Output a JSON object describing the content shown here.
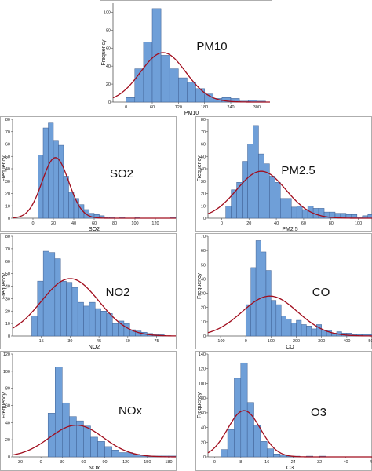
{
  "chart_data": [
    {
      "type": "bar",
      "annotation": "PM10",
      "xlabel": "PM10",
      "ylabel": "Frequency",
      "xlim": [
        -30,
        330
      ],
      "ylim": [
        0,
        110
      ],
      "xticks": [
        0,
        60,
        120,
        180,
        240,
        300
      ],
      "yticks": [
        0,
        20,
        40,
        60,
        80,
        100
      ],
      "bin_edges": [
        0,
        20,
        40,
        60,
        80,
        100,
        120,
        140,
        160,
        180,
        200,
        220,
        240,
        260,
        280,
        300,
        320
      ],
      "values": [
        5,
        37,
        67,
        104,
        52,
        37,
        27,
        22,
        15,
        9,
        4,
        5,
        4,
        1,
        2,
        1
      ],
      "normal_fit": {
        "mean": 85,
        "sd": 52,
        "peak": 55
      },
      "colors": {
        "bar": "#6f9fd8",
        "edge": "#3e5f92",
        "curve": "#a10d1d"
      }
    },
    {
      "type": "bar",
      "annotation": "SO2",
      "xlabel": "SO2",
      "ylabel": "Frequency",
      "xlim": [
        -20,
        140
      ],
      "ylim": [
        0,
        80
      ],
      "xticks": [
        0,
        20,
        40,
        60,
        80,
        100,
        120
      ],
      "yticks": [
        0,
        10,
        20,
        30,
        40,
        50,
        60,
        70,
        80
      ],
      "bin_edges": [
        5,
        10,
        15,
        20,
        25,
        30,
        35,
        40,
        45,
        50,
        55,
        60,
        65,
        70,
        75,
        80,
        85,
        90,
        95,
        100,
        105,
        110,
        115,
        120,
        125,
        130,
        135,
        140
      ],
      "values": [
        51,
        73,
        77,
        63,
        59,
        34,
        21,
        16,
        11,
        7,
        4,
        3,
        2,
        1,
        1,
        0,
        1,
        0,
        0,
        1,
        0,
        0,
        0,
        0,
        0,
        0,
        1
      ],
      "normal_fit": {
        "mean": 22,
        "sd": 13,
        "peak": 49
      },
      "colors": {
        "bar": "#6f9fd8",
        "edge": "#3e5f92",
        "curve": "#a10d1d"
      }
    },
    {
      "type": "bar",
      "annotation": "PM2.5",
      "xlabel": "PM2.5",
      "ylabel": "Frequency",
      "xlim": [
        -10,
        110
      ],
      "ylim": [
        0,
        80
      ],
      "xticks": [
        0,
        20,
        40,
        60,
        80,
        100
      ],
      "yticks": [
        0,
        10,
        20,
        30,
        40,
        50,
        60,
        70,
        80
      ],
      "bin_edges": [
        3,
        7,
        11,
        15,
        19,
        23,
        27,
        31,
        35,
        39,
        43,
        47,
        51,
        55,
        59,
        63,
        67,
        71,
        75,
        79,
        83,
        87,
        91,
        95,
        99,
        103,
        107,
        110
      ],
      "values": [
        10,
        23,
        29,
        46,
        60,
        75,
        52,
        44,
        34,
        29,
        16,
        16,
        9,
        10,
        7,
        10,
        8,
        8,
        5,
        5,
        4,
        4,
        3,
        3,
        1,
        2,
        3
      ],
      "normal_fit": {
        "mean": 29,
        "sd": 18,
        "peak": 38
      },
      "colors": {
        "bar": "#6f9fd8",
        "edge": "#3e5f92",
        "curve": "#a10d1d"
      }
    },
    {
      "type": "bar",
      "annotation": "NO2",
      "xlabel": "NO2",
      "ylabel": "Frequency",
      "xlim": [
        0,
        85
      ],
      "ylim": [
        0,
        80
      ],
      "xticks": [
        15,
        30,
        45,
        60,
        75
      ],
      "yticks": [
        0,
        10,
        20,
        30,
        40,
        50,
        60,
        70,
        80
      ],
      "bin_edges": [
        10,
        13,
        16,
        19,
        22,
        25,
        28,
        31,
        34,
        37,
        40,
        43,
        46,
        49,
        52,
        55,
        58,
        61,
        64,
        67,
        70,
        73,
        76,
        79
      ],
      "values": [
        16,
        44,
        68,
        67,
        62,
        44,
        43,
        39,
        27,
        24,
        27,
        22,
        20,
        18,
        10,
        12,
        10,
        5,
        4,
        3,
        2,
        1,
        1
      ],
      "normal_fit": {
        "mean": 30,
        "sd": 15,
        "peak": 46
      },
      "colors": {
        "bar": "#6f9fd8",
        "edge": "#3e5f92",
        "curve": "#a10d1d"
      }
    },
    {
      "type": "bar",
      "annotation": "CO",
      "xlabel": "CO",
      "ylabel": "Frequency",
      "xlim": [
        -150,
        500
      ],
      "ylim": [
        0,
        70
      ],
      "xticks": [
        -100,
        0,
        100,
        200,
        300,
        400,
        500
      ],
      "yticks": [
        0,
        10,
        20,
        30,
        40,
        50,
        60,
        70
      ],
      "bin_edges": [
        0,
        20,
        40,
        60,
        80,
        100,
        120,
        140,
        160,
        180,
        200,
        220,
        240,
        260,
        280,
        300,
        320,
        340,
        360,
        380,
        400,
        420,
        440,
        460,
        480,
        500
      ],
      "values": [
        22,
        48,
        67,
        59,
        46,
        25,
        22,
        14,
        12,
        9,
        11,
        8,
        7,
        5,
        8,
        4,
        4,
        2,
        3,
        2,
        2,
        1,
        1,
        1,
        1
      ],
      "normal_fit": {
        "mean": 95,
        "sd": 110,
        "peak": 28
      },
      "colors": {
        "bar": "#6f9fd8",
        "edge": "#3e5f92",
        "curve": "#a10d1d"
      }
    },
    {
      "type": "bar",
      "annotation": "NOx",
      "xlabel": "NOx",
      "ylabel": "Frequency",
      "xlim": [
        -40,
        190
      ],
      "ylim": [
        0,
        120
      ],
      "xticks": [
        -30,
        0,
        30,
        60,
        90,
        120,
        150,
        180
      ],
      "yticks": [
        0,
        20,
        40,
        60,
        80,
        100,
        120
      ],
      "bin_edges": [
        10,
        20,
        30,
        40,
        50,
        60,
        70,
        80,
        90,
        100,
        110,
        120,
        130,
        140,
        150,
        160,
        170,
        180,
        190
      ],
      "values": [
        51,
        105,
        63,
        47,
        42,
        36,
        23,
        18,
        12,
        8,
        5,
        5,
        3,
        2,
        1,
        1,
        1,
        1
      ],
      "normal_fit": {
        "mean": 50,
        "sd": 38,
        "peak": 37
      },
      "colors": {
        "bar": "#6f9fd8",
        "edge": "#3e5f92",
        "curve": "#a10d1d"
      }
    },
    {
      "type": "bar",
      "annotation": "O3",
      "xlabel": "O3",
      "ylabel": "Frequency",
      "xlim": [
        -2,
        48
      ],
      "ylim": [
        0,
        140
      ],
      "xticks": [
        0,
        8,
        16,
        24,
        32,
        40,
        48
      ],
      "yticks": [
        0,
        20,
        40,
        60,
        80,
        100,
        120,
        140
      ],
      "bin_edges": [
        2,
        4,
        6,
        8,
        10,
        12,
        14,
        16,
        18,
        20,
        22,
        24,
        26,
        28,
        30,
        32,
        34,
        36,
        38,
        40,
        42,
        44,
        46
      ],
      "values": [
        10,
        37,
        107,
        128,
        74,
        43,
        21,
        11,
        4,
        3,
        1,
        1,
        0,
        1,
        0,
        1,
        0,
        0,
        0,
        0,
        0,
        0
      ],
      "normal_fit": {
        "mean": 9,
        "sd": 5,
        "peak": 63
      },
      "colors": {
        "bar": "#6f9fd8",
        "edge": "#3e5f92",
        "curve": "#a10d1d"
      }
    }
  ]
}
